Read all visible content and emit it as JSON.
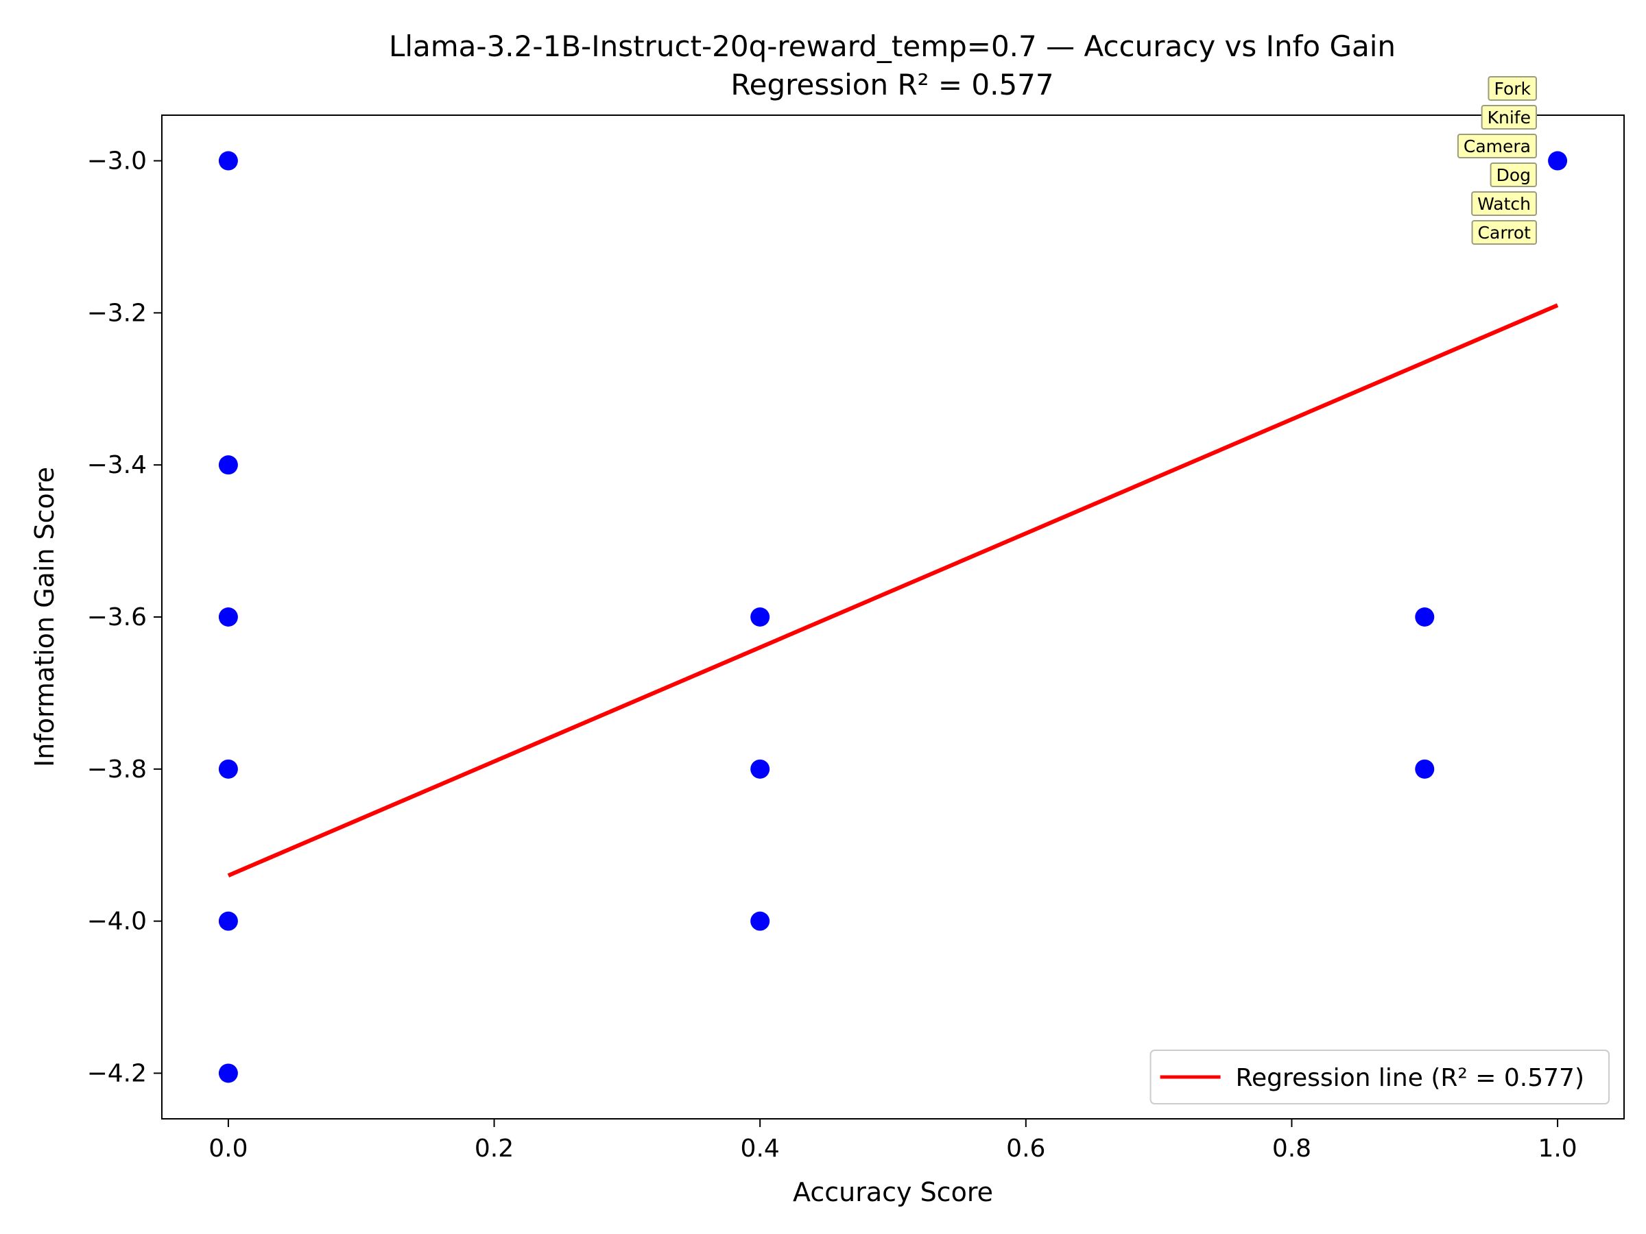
{
  "chart_data": {
    "type": "scatter",
    "title": "Llama-3.2-1B-Instruct-20q-reward_temp=0.7 — Accuracy vs Info Gain",
    "subtitle": "Regression R² = 0.577",
    "xlabel": "Accuracy Score",
    "ylabel": "Information Gain Score",
    "xlim": [
      -0.05,
      1.05
    ],
    "ylim": [
      -4.26,
      -2.94
    ],
    "xticks": [
      0.0,
      0.2,
      0.4,
      0.6,
      0.8,
      1.0
    ],
    "xtick_labels": [
      "0.0",
      "0.2",
      "0.4",
      "0.6",
      "0.8",
      "1.0"
    ],
    "yticks": [
      -3.0,
      -3.2,
      -3.4,
      -3.6,
      -3.8,
      -4.0,
      -4.2
    ],
    "ytick_labels": [
      "−3.0",
      "−3.2",
      "−3.4",
      "−3.6",
      "−3.8",
      "−4.0",
      "−4.2"
    ],
    "grid": false,
    "points": [
      {
        "x": 0.0,
        "y": -3.0
      },
      {
        "x": 0.0,
        "y": -3.4
      },
      {
        "x": 0.0,
        "y": -3.6
      },
      {
        "x": 0.0,
        "y": -3.8
      },
      {
        "x": 0.0,
        "y": -4.0
      },
      {
        "x": 0.0,
        "y": -4.2
      },
      {
        "x": 0.4,
        "y": -3.6
      },
      {
        "x": 0.4,
        "y": -3.8
      },
      {
        "x": 0.4,
        "y": -4.0
      },
      {
        "x": 0.9,
        "y": -3.6
      },
      {
        "x": 0.9,
        "y": -3.8
      },
      {
        "x": 1.0,
        "y": -3.0
      }
    ],
    "point_color": "#0000ff",
    "regression_line": {
      "x": [
        0.0,
        1.0
      ],
      "y": [
        -3.94,
        -3.19
      ],
      "color": "#ff0000"
    },
    "legend": {
      "position": "lower right",
      "label": "Regression line (R² = 0.577)"
    },
    "annotations": [
      "Fork",
      "Knife",
      "Camera",
      "Dog",
      "Watch",
      "Carrot"
    ],
    "annotation_bg": "#ffffb3",
    "annotation_border": "#9b9b80"
  }
}
